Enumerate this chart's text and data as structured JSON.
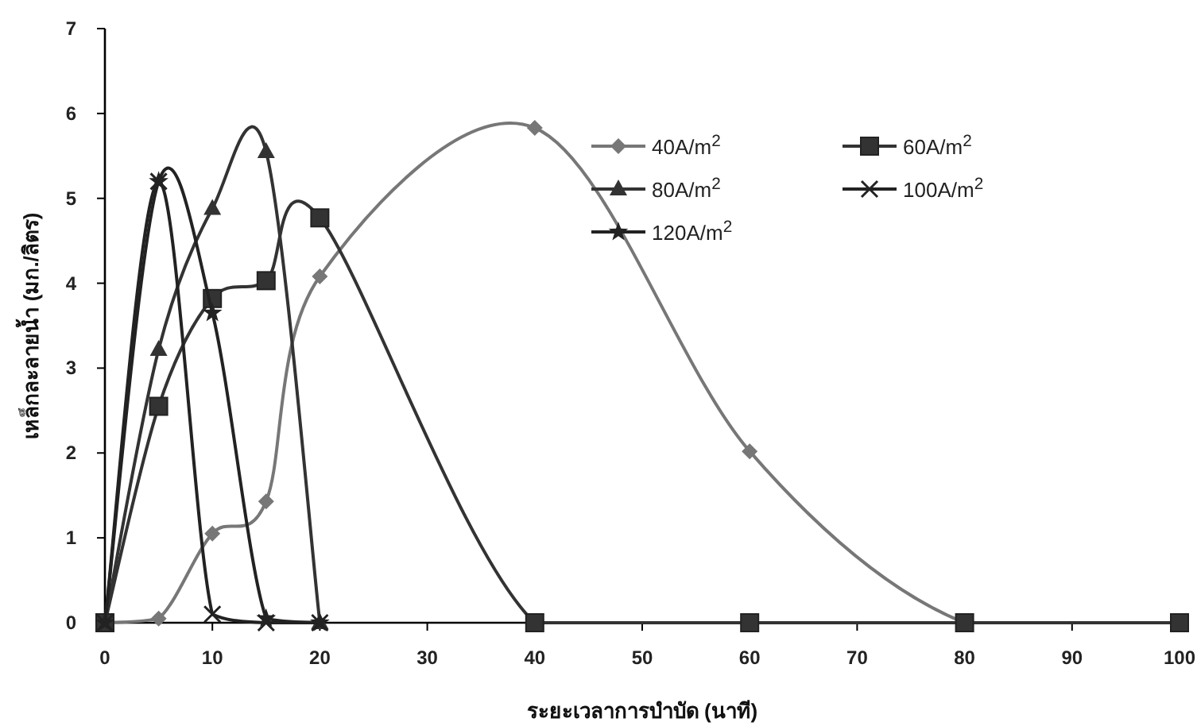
{
  "chart_data": {
    "type": "line",
    "xlabel": "ระยะเวลาการบำบัด (นาที)",
    "ylabel": "เหล็กละลายน้ำ (มก./ลิตร)",
    "xlim": [
      0,
      100
    ],
    "xticks": [
      0,
      10,
      20,
      30,
      40,
      50,
      60,
      70,
      80,
      90,
      100
    ],
    "ylim": [
      0,
      7
    ],
    "yticks": [
      0,
      1,
      2,
      3,
      4,
      5,
      6,
      7
    ],
    "legend": "top right",
    "grid": false,
    "line_style": "solid",
    "series": [
      {
        "name": "40A/m$^{2}$",
        "color": "#777777",
        "marker": "diamond",
        "x": [
          0,
          5,
          10,
          15,
          20,
          40,
          60,
          80,
          100
        ],
        "values": [
          0,
          0.05,
          1.05,
          1.43,
          4.08,
          5.83,
          2.02,
          0,
          0
        ]
      },
      {
        "name": "60A/m$^{2}$",
        "color": "#333333",
        "marker": "square",
        "x": [
          0,
          5,
          10,
          15,
          20,
          40,
          60,
          80,
          100
        ],
        "values": [
          0,
          2.55,
          3.82,
          4.03,
          4.77,
          0,
          0,
          0,
          0
        ]
      },
      {
        "name": "80A/m$^{2}$",
        "color": "#333333",
        "marker": "triangle",
        "x": [
          0,
          5,
          10,
          15,
          20
        ],
        "values": [
          0,
          3.22,
          4.88,
          5.55,
          0
        ]
      },
      {
        "name": "100A/m$^{2}$",
        "color": "#222222",
        "marker": "cross",
        "x": [
          0,
          5,
          10,
          15,
          20
        ],
        "values": [
          0,
          5.2,
          0.1,
          0,
          0
        ]
      },
      {
        "name": "120A/m$^{2}$",
        "color": "#222222",
        "marker": "star",
        "x": [
          0,
          5,
          10,
          15,
          20
        ],
        "values": [
          0,
          5.2,
          3.65,
          0.05,
          0
        ]
      }
    ]
  }
}
